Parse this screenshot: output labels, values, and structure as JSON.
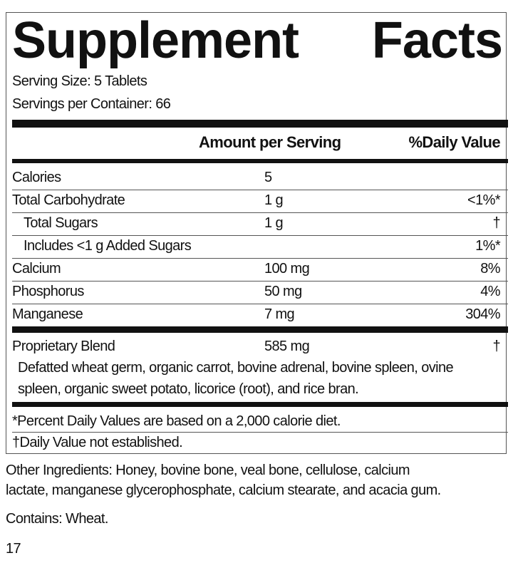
{
  "title_words": [
    "Supplement",
    "Facts"
  ],
  "serving_size": "Serving Size: 5 Tablets",
  "servings_per_container": "Servings per Container: 66",
  "header": {
    "amount": "Amount per Serving",
    "dv": "%Daily Value"
  },
  "rows": [
    {
      "name": "Calories",
      "amount": "5",
      "dv": ""
    },
    {
      "name": "Total Carbohydrate",
      "amount": "1 g",
      "dv": "<1%*"
    },
    {
      "name": "Total Sugars",
      "amount": "1 g",
      "dv": "†"
    },
    {
      "name": "Includes <1 g Added Sugars",
      "amount": "",
      "dv": "1%*"
    },
    {
      "name": "Calcium",
      "amount": "100 mg",
      "dv": "8%"
    },
    {
      "name": "Phosphorus",
      "amount": "50 mg",
      "dv": "4%"
    },
    {
      "name": "Manganese",
      "amount": "7 mg",
      "dv": "304%"
    }
  ],
  "blend": {
    "name": "Proprietary Blend",
    "amount": "585 mg",
    "dv": "†",
    "line1": "Defatted wheat germ, organic carrot, bovine adrenal, bovine spleen, ovine",
    "line2": "spleen, organic sweet potato, licorice (root), and rice bran."
  },
  "footnotes": [
    "*Percent Daily Values are based on a 2,000 calorie diet.",
    "†Daily Value not established."
  ],
  "other_ingredients": [
    "Other Ingredients: Honey, bovine bone, veal bone, cellulose, calcium",
    "lactate, manganese glycerophosphate, calcium stearate, and acacia gum."
  ],
  "contains": "Contains: Wheat.",
  "page_number": "17"
}
